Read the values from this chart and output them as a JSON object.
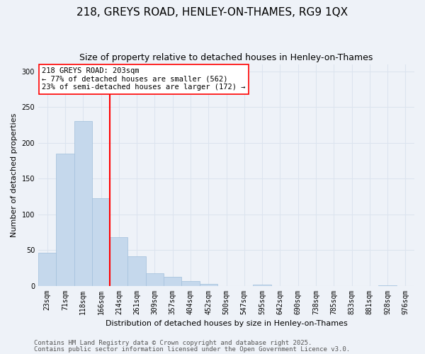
{
  "title": "218, GREYS ROAD, HENLEY-ON-THAMES, RG9 1QX",
  "subtitle": "Size of property relative to detached houses in Henley-on-Thames",
  "xlabel": "Distribution of detached houses by size in Henley-on-Thames",
  "ylabel": "Number of detached properties",
  "categories": [
    "23sqm",
    "71sqm",
    "118sqm",
    "166sqm",
    "214sqm",
    "261sqm",
    "309sqm",
    "357sqm",
    "404sqm",
    "452sqm",
    "500sqm",
    "547sqm",
    "595sqm",
    "642sqm",
    "690sqm",
    "738sqm",
    "785sqm",
    "833sqm",
    "881sqm",
    "928sqm",
    "976sqm"
  ],
  "values": [
    47,
    185,
    230,
    123,
    68,
    42,
    18,
    13,
    7,
    3,
    0,
    0,
    2,
    0,
    0,
    0,
    0,
    0,
    0,
    1,
    0
  ],
  "bar_color": "#c5d8ec",
  "bar_edge_color": "#a8c4de",
  "grid_color": "#dce4ef",
  "background_color": "#eef2f8",
  "ref_line_color": "red",
  "annotation_text": "218 GREYS ROAD: 203sqm\n← 77% of detached houses are smaller (562)\n23% of semi-detached houses are larger (172) →",
  "annotation_box_color": "white",
  "annotation_box_edge_color": "red",
  "ylim": [
    0,
    310
  ],
  "yticks": [
    0,
    50,
    100,
    150,
    200,
    250,
    300
  ],
  "footer1": "Contains HM Land Registry data © Crown copyright and database right 2025.",
  "footer2": "Contains public sector information licensed under the Open Government Licence v3.0.",
  "title_fontsize": 11,
  "subtitle_fontsize": 9,
  "axis_label_fontsize": 8,
  "tick_fontsize": 7,
  "annotation_fontsize": 7.5,
  "footer_fontsize": 6.5
}
